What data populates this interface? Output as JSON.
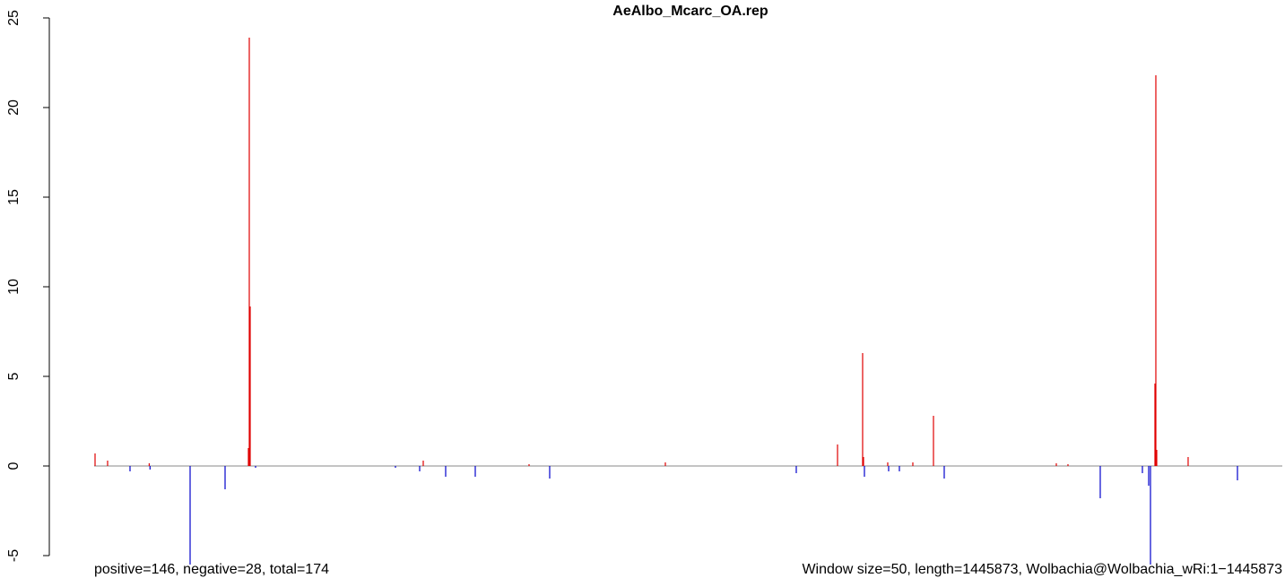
{
  "chart_data": {
    "type": "bar",
    "title": "AeAlbo_Mcarc_OA.rep",
    "annotations": [
      "positive=146, negative=28, total=174",
      "Window size=50, length=1445873, Wolbachia@Wolbachia_wRi:1−1445873"
    ],
    "x": [
      1091,
      16368,
      43637,
      67000,
      68000,
      116758,
      159315,
      187686,
      188778,
      189869,
      196416,
      366643,
      396106,
      400470,
      427750,
      463760,
      529232,
      554330,
      695094,
      854410,
      904605,
      935158,
      936250,
      937341,
      965712,
      966803,
      979898,
      996266,
      1021364,
      1034458,
      1170858,
      1185043,
      1224326,
      1275613,
      1283251,
      1285434,
      1290890,
      1291981,
      1293072,
      1331264,
      1391280
    ],
    "values": [
      0.7,
      0.3,
      -0.3,
      0.15,
      -0.2,
      -5.5,
      -1.3,
      1.0,
      23.9,
      8.9,
      -0.1,
      -0.1,
      -0.3,
      0.3,
      -0.6,
      -0.6,
      0.1,
      -0.7,
      0.2,
      -0.4,
      1.2,
      6.3,
      0.5,
      -0.6,
      0.2,
      -0.3,
      -0.3,
      0.2,
      2.8,
      -0.7,
      0.15,
      0.1,
      -1.8,
      -0.4,
      -1.1,
      -5.5,
      4.6,
      21.8,
      0.9,
      0.5,
      -0.8
    ],
    "color_positive": "#e00000",
    "color_negative": "#0000cc",
    "xlim": [
      0,
      1445873
    ],
    "ylim": [
      -5,
      25
    ],
    "yticks": [
      -5,
      0,
      5,
      10,
      15,
      20,
      25
    ]
  }
}
